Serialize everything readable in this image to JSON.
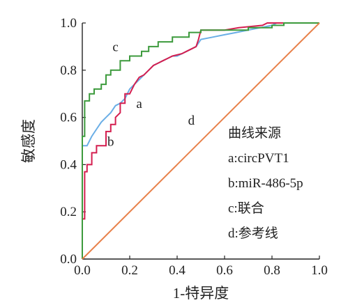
{
  "chart_data": {
    "type": "line",
    "xlabel": "1-特异度",
    "ylabel": "敏感度",
    "xlim": [
      0,
      1
    ],
    "ylim": [
      0,
      1
    ],
    "xticks": [
      "0.0",
      "0.2",
      "0.4",
      "0.6",
      "0.8",
      "1.0"
    ],
    "yticks": [
      "0.0",
      "0.2",
      "0.4",
      "0.6",
      "0.8",
      "1.0"
    ],
    "grid": false,
    "legend_position": "right-middle",
    "legend_title": "曲线来源",
    "legend_items": [
      "a:circPVT1",
      "b:miR-486-5p",
      "c:联合",
      "d:参考线"
    ],
    "series": [
      {
        "key": "a",
        "color": "#6aaee6",
        "points": [
          [
            0,
            0
          ],
          [
            0,
            0.48
          ],
          [
            0.02,
            0.48
          ],
          [
            0.04,
            0.52
          ],
          [
            0.06,
            0.55
          ],
          [
            0.08,
            0.58
          ],
          [
            0.1,
            0.6
          ],
          [
            0.12,
            0.62
          ],
          [
            0.14,
            0.65
          ],
          [
            0.16,
            0.66
          ],
          [
            0.18,
            0.68
          ],
          [
            0.2,
            0.72
          ],
          [
            0.22,
            0.74
          ],
          [
            0.24,
            0.76
          ],
          [
            0.26,
            0.78
          ],
          [
            0.28,
            0.8
          ],
          [
            0.3,
            0.82
          ],
          [
            0.32,
            0.83
          ],
          [
            0.34,
            0.84
          ],
          [
            0.36,
            0.85
          ],
          [
            0.38,
            0.86
          ],
          [
            0.4,
            0.86
          ],
          [
            0.42,
            0.87
          ],
          [
            0.44,
            0.88
          ],
          [
            0.46,
            0.89
          ],
          [
            0.48,
            0.9
          ],
          [
            0.5,
            0.93
          ],
          [
            0.55,
            0.94
          ],
          [
            0.6,
            0.95
          ],
          [
            0.65,
            0.96
          ],
          [
            0.7,
            0.97
          ],
          [
            0.75,
            0.98
          ],
          [
            0.8,
            0.99
          ],
          [
            0.82,
            1.0
          ],
          [
            1.0,
            1.0
          ]
        ]
      },
      {
        "key": "b",
        "color": "#d41e4f",
        "points": [
          [
            0,
            0
          ],
          [
            0,
            0.17
          ],
          [
            0.01,
            0.17
          ],
          [
            0.01,
            0.37
          ],
          [
            0.02,
            0.37
          ],
          [
            0.02,
            0.4
          ],
          [
            0.04,
            0.4
          ],
          [
            0.04,
            0.45
          ],
          [
            0.06,
            0.45
          ],
          [
            0.06,
            0.48
          ],
          [
            0.1,
            0.48
          ],
          [
            0.1,
            0.54
          ],
          [
            0.12,
            0.54
          ],
          [
            0.12,
            0.57
          ],
          [
            0.14,
            0.57
          ],
          [
            0.14,
            0.6
          ],
          [
            0.16,
            0.62
          ],
          [
            0.16,
            0.66
          ],
          [
            0.18,
            0.66
          ],
          [
            0.18,
            0.7
          ],
          [
            0.2,
            0.7
          ],
          [
            0.22,
            0.74
          ],
          [
            0.24,
            0.77
          ],
          [
            0.26,
            0.78
          ],
          [
            0.28,
            0.8
          ],
          [
            0.3,
            0.82
          ],
          [
            0.32,
            0.83
          ],
          [
            0.34,
            0.84
          ],
          [
            0.36,
            0.85
          ],
          [
            0.38,
            0.86
          ],
          [
            0.42,
            0.87
          ],
          [
            0.44,
            0.88
          ],
          [
            0.46,
            0.89
          ],
          [
            0.48,
            0.9
          ],
          [
            0.49,
            0.93
          ],
          [
            0.5,
            0.97
          ],
          [
            0.6,
            0.97
          ],
          [
            0.66,
            0.98
          ],
          [
            0.76,
            0.99
          ],
          [
            0.78,
            1.0
          ],
          [
            1.0,
            1.0
          ]
        ]
      },
      {
        "key": "c",
        "color": "#3c9a3c",
        "points": [
          [
            0,
            0
          ],
          [
            0,
            0.52
          ],
          [
            0.01,
            0.52
          ],
          [
            0.01,
            0.67
          ],
          [
            0.03,
            0.67
          ],
          [
            0.03,
            0.7
          ],
          [
            0.05,
            0.7
          ],
          [
            0.05,
            0.72
          ],
          [
            0.08,
            0.72
          ],
          [
            0.08,
            0.74
          ],
          [
            0.1,
            0.74
          ],
          [
            0.1,
            0.78
          ],
          [
            0.12,
            0.78
          ],
          [
            0.12,
            0.8
          ],
          [
            0.16,
            0.8
          ],
          [
            0.16,
            0.84
          ],
          [
            0.2,
            0.84
          ],
          [
            0.2,
            0.86
          ],
          [
            0.25,
            0.86
          ],
          [
            0.25,
            0.88
          ],
          [
            0.28,
            0.88
          ],
          [
            0.28,
            0.9
          ],
          [
            0.32,
            0.9
          ],
          [
            0.32,
            0.92
          ],
          [
            0.38,
            0.92
          ],
          [
            0.38,
            0.94
          ],
          [
            0.45,
            0.94
          ],
          [
            0.45,
            0.96
          ],
          [
            0.5,
            0.96
          ],
          [
            0.5,
            0.97
          ],
          [
            0.7,
            0.97
          ],
          [
            0.7,
            0.98
          ],
          [
            0.8,
            0.98
          ],
          [
            0.8,
            0.99
          ],
          [
            0.85,
            0.99
          ],
          [
            0.85,
            1.0
          ],
          [
            1.0,
            1.0
          ]
        ]
      },
      {
        "key": "d",
        "color": "#e8814a",
        "points": [
          [
            0,
            0
          ],
          [
            1,
            1
          ]
        ]
      }
    ],
    "curve_labels": [
      {
        "key": "c",
        "text": "c",
        "at": [
          0.14,
          0.88
        ]
      },
      {
        "key": "a",
        "text": "a",
        "at": [
          0.24,
          0.64
        ]
      },
      {
        "key": "b",
        "text": "b",
        "at": [
          0.12,
          0.48
        ]
      },
      {
        "key": "d",
        "text": "d",
        "at": [
          0.46,
          0.57
        ]
      }
    ]
  }
}
